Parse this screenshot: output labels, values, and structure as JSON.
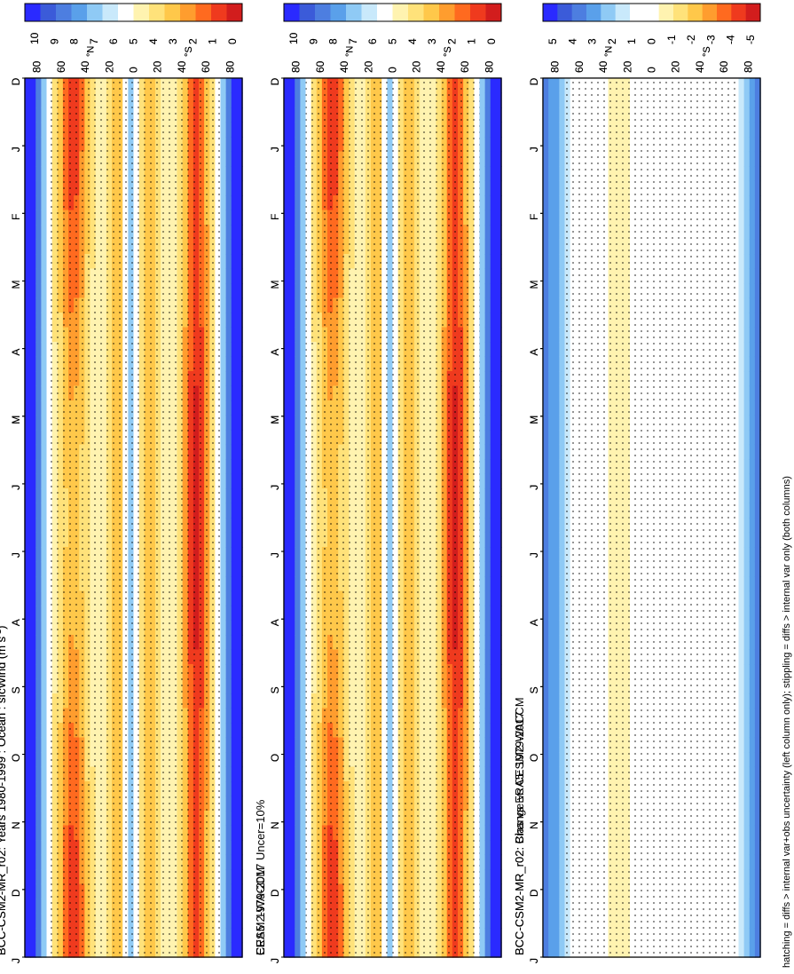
{
  "figure": {
    "orientation": "rotated-90-ccw",
    "footnote": "hatching = diffs > internal var+obs uncertainty (left column only); stippling = diffs > internal var only (both columns)"
  },
  "colors": {
    "mean_scale": [
      "#2a2aff",
      "#3b5bd9",
      "#4d7ee0",
      "#5aa0ea",
      "#8fcaf5",
      "#c9e9fb",
      "#ffffff",
      "#fff3b0",
      "#ffe27a",
      "#ffc84a",
      "#ff9d2e",
      "#ff6a1f",
      "#ef3a1e",
      "#d21d1d"
    ],
    "diff_scale": [
      "#2a2aff",
      "#3b5bd9",
      "#4d7ee0",
      "#5aa0ea",
      "#8fcaf5",
      "#c9e9fb",
      "#ffffff",
      "#ffffff",
      "#fff3b0",
      "#ffe27a",
      "#ffc84a",
      "#ff9d2e",
      "#ff6a1f",
      "#ef3a1e",
      "#d21d1d"
    ],
    "frame": "#000000"
  },
  "chart_data": [
    {
      "id": "model-left",
      "type": "heatmap",
      "title": "BCC-CSM2-MR_r02: Years 1980-1999 : Ocean : sfcWind (m s",
      "units_sup": "-1",
      "title_close": ")",
      "months": [
        "D",
        "J",
        "F",
        "M",
        "A",
        "M",
        "J",
        "J",
        "A",
        "S",
        "O",
        "N",
        "D",
        "J"
      ],
      "lat_ticks": [
        "80",
        "60",
        "40",
        "20",
        "0",
        "20",
        "40",
        "60",
        "80"
      ],
      "lat_units": [
        "°N",
        "°S"
      ],
      "colorbar_ticks": [
        "10",
        "9",
        "8",
        "7",
        "6",
        "5",
        "4",
        "3",
        "2",
        "1",
        "0"
      ],
      "hatching": true,
      "stippling": true
    },
    {
      "id": "model-right",
      "type": "heatmap",
      "title": "BCC-CSM2-MR_r02: Years 1980-1999 : Ocean : sfcWind (m s",
      "units_sup": "-1",
      "title_close": ")",
      "months": [
        "D",
        "J",
        "F",
        "M",
        "A",
        "M",
        "J",
        "J",
        "A",
        "S",
        "O",
        "N",
        "D",
        "J"
      ],
      "lat_ticks": [
        "80",
        "60",
        "40",
        "20",
        "0",
        "20",
        "40",
        "60",
        "80"
      ],
      "lat_units": [
        "°N",
        "°S"
      ],
      "colorbar_ticks": [
        "10",
        "9",
        "8",
        "7",
        "6",
        "5",
        "4",
        "3",
        "2",
        "1",
        "0"
      ],
      "hatching": false,
      "stippling": true
    },
    {
      "id": "era5",
      "type": "heatmap",
      "title": "ERA5: 1979-2017 Uncer=10%",
      "months": [
        "D",
        "J",
        "F",
        "M",
        "A",
        "M",
        "J",
        "J",
        "A",
        "S",
        "O",
        "N",
        "D",
        "J"
      ],
      "lat_ticks": [
        "80",
        "60",
        "40",
        "20",
        "0",
        "20",
        "40",
        "60",
        "80"
      ],
      "lat_units": [
        "°N",
        "°S"
      ],
      "colorbar_ticks": [
        "10",
        "9",
        "8",
        "7",
        "6",
        "5",
        "4",
        "3",
        "2",
        "1",
        "0"
      ],
      "hatching": true,
      "stippling": true
    },
    {
      "id": "cesm2",
      "type": "heatmap",
      "title": "CESM2-WACCM",
      "months": [
        "D",
        "J",
        "F",
        "M",
        "A",
        "M",
        "J",
        "J",
        "A",
        "S",
        "O",
        "N",
        "D",
        "J"
      ],
      "lat_ticks": [
        "80",
        "60",
        "40",
        "20",
        "0",
        "20",
        "40",
        "60",
        "80"
      ],
      "lat_units": [
        "°N",
        "°S"
      ],
      "colorbar_ticks": [
        "10",
        "9",
        "8",
        "7",
        "6",
        "5",
        "4",
        "3",
        "2",
        "1",
        "0"
      ],
      "hatching": false,
      "stippling": true
    },
    {
      "id": "bias",
      "type": "heatmap",
      "title": "BCC-CSM2-MR_r02: Bias vs ERA5: 1979-2017",
      "months": [
        "D",
        "J",
        "F",
        "M",
        "A",
        "M",
        "J",
        "J",
        "A",
        "S",
        "O",
        "N",
        "D",
        "J"
      ],
      "lat_ticks": [
        "80",
        "60",
        "40",
        "20",
        "0",
        "20",
        "40",
        "60",
        "80"
      ],
      "lat_units": [
        "°N",
        "°S"
      ],
      "colorbar_ticks": [
        "5",
        "4",
        "3",
        "2",
        "1",
        "0",
        "-1",
        "-2",
        "-3",
        "-4",
        "-5"
      ],
      "hatching": true,
      "stippling": true
    },
    {
      "id": "change",
      "type": "heatmap",
      "title": "BCC-CSM2-MR_r02: Change vs CESM2-WACCM",
      "months": [
        "D",
        "J",
        "F",
        "M",
        "A",
        "M",
        "J",
        "J",
        "A",
        "S",
        "O",
        "N",
        "D",
        "J"
      ],
      "lat_ticks": [
        "80",
        "60",
        "40",
        "20",
        "0",
        "20",
        "40",
        "60",
        "80"
      ],
      "lat_units": [
        "°N",
        "°S"
      ],
      "colorbar_ticks": [
        "5",
        "4",
        "3",
        "2",
        "1",
        "0",
        "-1",
        "-2",
        "-3",
        "-4",
        "-5"
      ],
      "hatching": false,
      "stippling": true
    }
  ]
}
